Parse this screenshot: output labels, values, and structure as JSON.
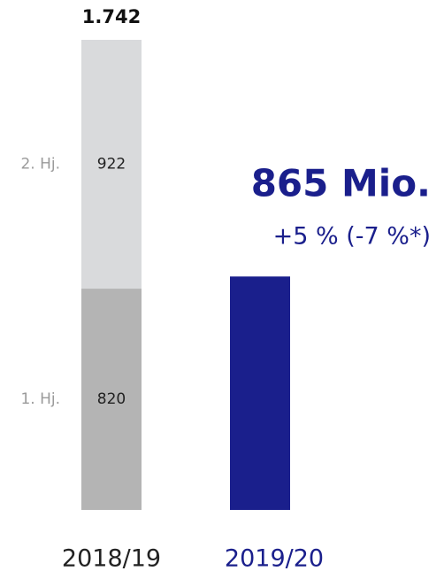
{
  "chart_data": {
    "type": "stacked_bar",
    "categories": [
      "2018/19",
      "2019/20"
    ],
    "category_colors": [
      "#222222",
      "#1a1f8c"
    ],
    "series": [
      {
        "name": "1. Hj.",
        "color": "#b4b4b4",
        "values": [
          820,
          null
        ]
      },
      {
        "name": "2. Hj.",
        "color": "#d9dadc",
        "values": [
          922,
          null
        ]
      },
      {
        "color": "#1a1f8c",
        "values": [
          null,
          865
        ],
        "value_labels": [
          null,
          "865 Mio."
        ]
      }
    ],
    "totals": {
      "values": [
        1742,
        null
      ],
      "value_labels": [
        "1.742",
        null
      ]
    },
    "annotation": "+5 % (-7 %*)"
  }
}
